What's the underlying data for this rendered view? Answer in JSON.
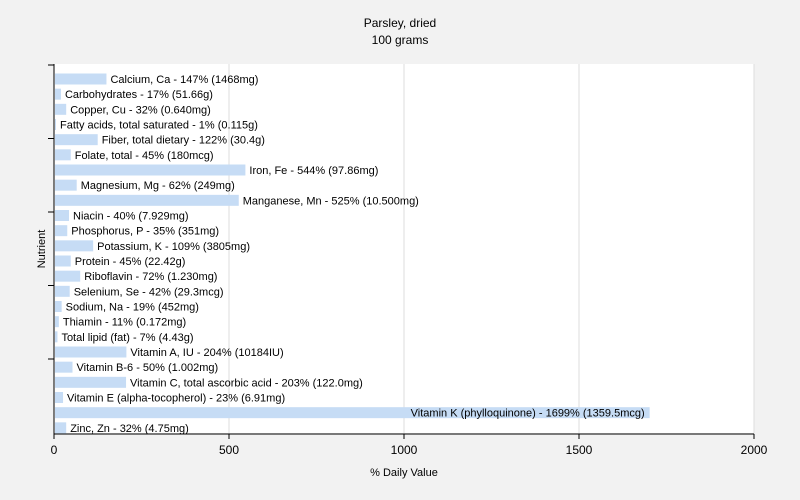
{
  "chart_data": {
    "type": "bar",
    "orientation": "horizontal",
    "title": "Parsley, dried",
    "subtitle": "100 grams",
    "xlabel": "% Daily Value",
    "ylabel": "Nutrient",
    "xlim": [
      0,
      2000
    ],
    "xticks": [
      0,
      500,
      1000,
      1500,
      2000
    ],
    "grid": true,
    "bar_color": "#c6dcf5",
    "categories": [
      "Calcium, Ca",
      "Carbohydrates",
      "Copper, Cu",
      "Fatty acids, total saturated",
      "Fiber, total dietary",
      "Folate, total",
      "Iron, Fe",
      "Magnesium, Mg",
      "Manganese, Mn",
      "Niacin",
      "Phosphorus, P",
      "Potassium, K",
      "Protein",
      "Riboflavin",
      "Selenium, Se",
      "Sodium, Na",
      "Thiamin",
      "Total lipid (fat)",
      "Vitamin A, IU",
      "Vitamin B-6",
      "Vitamin C, total ascorbic acid",
      "Vitamin E (alpha-tocopherol)",
      "Vitamin K (phylloquinone)",
      "Zinc, Zn"
    ],
    "values": [
      147,
      17,
      32,
      1,
      122,
      45,
      544,
      62,
      525,
      40,
      35,
      109,
      45,
      72,
      42,
      19,
      11,
      7,
      204,
      50,
      203,
      23,
      1699,
      32
    ],
    "labels": [
      "Calcium, Ca - 147% (1468mg)",
      "Carbohydrates - 17% (51.66g)",
      "Copper, Cu - 32% (0.640mg)",
      "Fatty acids, total saturated - 1% (0.115g)",
      "Fiber, total dietary - 122% (30.4g)",
      "Folate, total - 45% (180mcg)",
      "Iron, Fe - 544% (97.86mg)",
      "Magnesium, Mg - 62% (249mg)",
      "Manganese, Mn - 525% (10.500mg)",
      "Niacin - 40% (7.929mg)",
      "Phosphorus, P - 35% (351mg)",
      "Potassium, K - 109% (3805mg)",
      "Protein - 45% (22.42g)",
      "Riboflavin - 72% (1.230mg)",
      "Selenium, Se - 42% (29.3mcg)",
      "Sodium, Na - 19% (452mg)",
      "Thiamin - 11% (0.172mg)",
      "Total lipid (fat) - 7% (4.43g)",
      "Vitamin A, IU - 204% (10184IU)",
      "Vitamin B-6 - 50% (1.002mg)",
      "Vitamin C, total ascorbic acid - 203% (122.0mg)",
      "Vitamin E (alpha-tocopherol) - 23% (6.91mg)",
      "Vitamin K (phylloquinone) - 1699% (1359.5mcg)",
      "Zinc, Zn - 32% (4.75mg)"
    ]
  }
}
